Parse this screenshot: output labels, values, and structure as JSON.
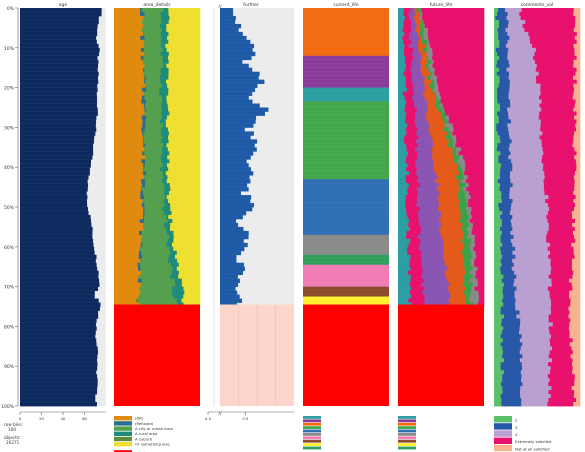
{
  "chart_data": {
    "type": "table",
    "panels": [
      {
        "name": "age",
        "kind": "numeric",
        "axis_ticks": [
          "0",
          "20",
          "40",
          "60"
        ],
        "profile": [
          [
            0.0,
            0.97
          ],
          [
            0.02,
            0.93
          ],
          [
            0.05,
            0.9
          ],
          [
            0.08,
            0.89
          ],
          [
            0.1,
            0.92
          ],
          [
            0.14,
            0.9
          ],
          [
            0.18,
            0.91
          ],
          [
            0.22,
            0.89
          ],
          [
            0.26,
            0.91
          ],
          [
            0.3,
            0.88
          ],
          [
            0.34,
            0.86
          ],
          [
            0.38,
            0.83
          ],
          [
            0.42,
            0.8
          ],
          [
            0.46,
            0.78
          ],
          [
            0.5,
            0.79
          ],
          [
            0.54,
            0.83
          ],
          [
            0.58,
            0.85
          ],
          [
            0.62,
            0.88
          ],
          [
            0.66,
            0.91
          ],
          [
            0.7,
            0.93
          ],
          [
            0.72,
            0.85
          ],
          [
            0.74,
            0.95
          ],
          [
            0.76,
            0.92
          ],
          [
            0.78,
            0.9
          ],
          [
            0.82,
            0.88
          ],
          [
            0.86,
            0.91
          ],
          [
            0.9,
            0.89
          ],
          [
            0.94,
            0.9
          ],
          [
            0.98,
            0.88
          ],
          [
            1.0,
            0.9
          ]
        ]
      },
      {
        "name": "area_details",
        "kind": "categorical",
        "missing_from": 0.745,
        "bands": [
          {
            "color": "#e18a10",
            "cum": [
              [
                0.0,
                0.32
              ],
              [
                0.2,
                0.34
              ],
              [
                0.4,
                0.34
              ],
              [
                0.55,
                0.32
              ],
              [
                0.6,
                0.3
              ],
              [
                0.7,
                0.29
              ],
              [
                0.745,
                0.28
              ]
            ]
          },
          {
            "color": "#2b6e8f",
            "cum": [
              [
                0.0,
                0.33
              ],
              [
                0.2,
                0.35
              ],
              [
                0.4,
                0.35
              ],
              [
                0.55,
                0.33
              ],
              [
                0.6,
                0.31
              ],
              [
                0.7,
                0.3
              ],
              [
                0.745,
                0.29
              ]
            ]
          },
          {
            "color": "#55a04f",
            "cum": [
              [
                0.0,
                0.55
              ],
              [
                0.2,
                0.55
              ],
              [
                0.4,
                0.55
              ],
              [
                0.5,
                0.58
              ],
              [
                0.58,
                0.62
              ],
              [
                0.65,
                0.66
              ],
              [
                0.72,
                0.7
              ],
              [
                0.745,
                0.72
              ]
            ]
          },
          {
            "color": "#1e8c78",
            "cum": [
              [
                0.0,
                0.62
              ],
              [
                0.2,
                0.62
              ],
              [
                0.4,
                0.62
              ],
              [
                0.5,
                0.64
              ],
              [
                0.58,
                0.68
              ],
              [
                0.65,
                0.74
              ],
              [
                0.72,
                0.8
              ],
              [
                0.745,
                0.8
              ]
            ]
          },
          {
            "color": "#eedf30",
            "cum": [
              [
                0.0,
                1.0
              ],
              [
                0.745,
                1.0
              ]
            ]
          }
        ],
        "legend": [
          {
            "label": "(DK)",
            "color": "#e18a10"
          },
          {
            "label": "(Refused)",
            "color": "#2b6e8f"
          },
          {
            "label": "A city or urban area",
            "color": "#55a04f"
          },
          {
            "label": "A rural area",
            "color": "#1e8c78"
          },
          {
            "label": "A suburb",
            "color": "#5f8c3a"
          },
          {
            "label": "Or something else",
            "color": "#eedf30"
          },
          {
            "label": "missing",
            "color": "#ff0000"
          }
        ]
      },
      {
        "name": "further",
        "kind": "numeric",
        "missing_from": 0.745,
        "axis_ticks": [
          "0.0",
          "0.5"
        ],
        "profile": [
          [
            0.0,
            0.35
          ],
          [
            0.05,
            0.33
          ],
          [
            0.1,
            0.55
          ],
          [
            0.14,
            0.42
          ],
          [
            0.18,
            0.62
          ],
          [
            0.22,
            0.5
          ],
          [
            0.26,
            0.68
          ],
          [
            0.3,
            0.47
          ],
          [
            0.34,
            0.6
          ],
          [
            0.38,
            0.44
          ],
          [
            0.42,
            0.55
          ],
          [
            0.46,
            0.4
          ],
          [
            0.5,
            0.52
          ],
          [
            0.54,
            0.35
          ],
          [
            0.58,
            0.47
          ],
          [
            0.62,
            0.32
          ],
          [
            0.66,
            0.42
          ],
          [
            0.7,
            0.3
          ],
          [
            0.745,
            0.36
          ]
        ]
      },
      {
        "name": "current_life",
        "kind": "categorical",
        "missing_from": 0.745,
        "segments": [
          {
            "color": "#f26b10",
            "from": 0.0,
            "to": 0.12
          },
          {
            "color": "#8b3b9c",
            "from": 0.12,
            "to": 0.2
          },
          {
            "color": "#2c9fa3",
            "from": 0.2,
            "to": 0.235
          },
          {
            "color": "#44a84a",
            "from": 0.235,
            "to": 0.43
          },
          {
            "color": "#2f6fb4",
            "from": 0.43,
            "to": 0.57
          },
          {
            "color": "#8a8a8a",
            "from": 0.57,
            "to": 0.62
          },
          {
            "color": "#2fa05c",
            "from": 0.62,
            "to": 0.645
          },
          {
            "color": "#f07bb5",
            "from": 0.645,
            "to": 0.7
          },
          {
            "color": "#8b4a2b",
            "from": 0.7,
            "to": 0.725
          },
          {
            "color": "#fff030",
            "from": 0.725,
            "to": 0.745
          }
        ],
        "legend_colors": [
          "#2c9fa3",
          "#8b3b9c",
          "#f26b10",
          "#44a84a",
          "#2f6fb4",
          "#8a8a8a",
          "#f07bb5",
          "#8b4a2b",
          "#fff030",
          "#2fa05c",
          "#ff0000"
        ]
      },
      {
        "name": "future_life",
        "kind": "categorical",
        "missing_from": 0.745,
        "bands": [
          {
            "color": "#2c9fa3",
            "cum": [
              [
                0.0,
                0.06
              ],
              [
                0.2,
                0.08
              ],
              [
                0.4,
                0.1
              ],
              [
                0.6,
                0.12
              ],
              [
                0.745,
                0.14
              ]
            ]
          },
          {
            "color": "#e8116e",
            "cum": [
              [
                0.0,
                0.12
              ],
              [
                0.1,
                0.15
              ],
              [
                0.2,
                0.18
              ],
              [
                0.35,
                0.22
              ],
              [
                0.5,
                0.24
              ],
              [
                0.6,
                0.25
              ],
              [
                0.745,
                0.3
              ]
            ]
          },
          {
            "color": "#8a55b3",
            "cum": [
              [
                0.0,
                0.2
              ],
              [
                0.1,
                0.24
              ],
              [
                0.2,
                0.3
              ],
              [
                0.35,
                0.4
              ],
              [
                0.45,
                0.46
              ],
              [
                0.55,
                0.5
              ],
              [
                0.65,
                0.56
              ],
              [
                0.745,
                0.6
              ]
            ]
          },
          {
            "color": "#e45a1a",
            "cum": [
              [
                0.0,
                0.22
              ],
              [
                0.1,
                0.3
              ],
              [
                0.2,
                0.38
              ],
              [
                0.3,
                0.54
              ],
              [
                0.4,
                0.68
              ],
              [
                0.5,
                0.72
              ],
              [
                0.6,
                0.76
              ],
              [
                0.745,
                0.78
              ]
            ]
          },
          {
            "color": "#3aa34a",
            "cum": [
              [
                0.0,
                0.24
              ],
              [
                0.1,
                0.34
              ],
              [
                0.2,
                0.42
              ],
              [
                0.3,
                0.58
              ],
              [
                0.4,
                0.74
              ],
              [
                0.5,
                0.8
              ],
              [
                0.6,
                0.84
              ],
              [
                0.745,
                0.86
              ]
            ]
          },
          {
            "color": "#8a8a8a",
            "cum": [
              [
                0.0,
                0.26
              ],
              [
                0.1,
                0.38
              ],
              [
                0.2,
                0.46
              ],
              [
                0.3,
                0.62
              ],
              [
                0.4,
                0.78
              ],
              [
                0.5,
                0.84
              ],
              [
                0.6,
                0.89
              ],
              [
                0.745,
                0.92
              ]
            ]
          },
          {
            "color": "#e8116e",
            "cum": [
              [
                0.0,
                1.0
              ],
              [
                0.745,
                1.0
              ]
            ]
          }
        ],
        "legend_colors": [
          "#2c9fa3",
          "#8b3b9c",
          "#f26b10",
          "#44a84a",
          "#2f6fb4",
          "#8a8a8a",
          "#f07bb5",
          "#8b4a2b",
          "#fff030",
          "#2fa05c",
          "#ff0000"
        ]
      },
      {
        "name": "comments_val",
        "kind": "categorical",
        "missing_from": 1.0,
        "bands": [
          {
            "color": "#5bbf6b",
            "cum": [
              [
                0.0,
                0.04
              ],
              [
                0.3,
                0.05
              ],
              [
                0.6,
                0.08
              ],
              [
                0.75,
                0.1
              ],
              [
                1.0,
                0.09
              ]
            ]
          },
          {
            "color": "#2958a8",
            "cum": [
              [
                0.0,
                0.14
              ],
              [
                0.1,
                0.16
              ],
              [
                0.3,
                0.18
              ],
              [
                0.5,
                0.2
              ],
              [
                0.7,
                0.24
              ],
              [
                0.8,
                0.3
              ],
              [
                1.0,
                0.32
              ]
            ]
          },
          {
            "color": "#b9a0d0",
            "cum": [
              [
                0.0,
                0.3
              ],
              [
                0.05,
                0.36
              ],
              [
                0.1,
                0.46
              ],
              [
                0.2,
                0.52
              ],
              [
                0.35,
                0.56
              ],
              [
                0.5,
                0.62
              ],
              [
                0.65,
                0.64
              ],
              [
                0.8,
                0.66
              ],
              [
                1.0,
                0.64
              ]
            ]
          },
          {
            "color": "#e8116e",
            "cum": [
              [
                0.0,
                0.94
              ],
              [
                0.3,
                0.94
              ],
              [
                0.6,
                0.92
              ],
              [
                0.75,
                0.88
              ],
              [
                0.85,
                0.9
              ],
              [
                1.0,
                0.94
              ]
            ]
          },
          {
            "color": "#f7b38d",
            "cum": [
              [
                0.0,
                1.0
              ],
              [
                1.0,
                1.0
              ]
            ]
          }
        ],
        "legend": [
          {
            "label": "2",
            "color": "#5bbf6b"
          },
          {
            "label": "3",
            "color": "#2958a8"
          },
          {
            "label": "4",
            "color": "#b9a0d0"
          },
          {
            "label": "Extremely satisfied",
            "color": "#e8116e"
          },
          {
            "label": "Not at all satisfied",
            "color": "#f7b38d"
          },
          {
            "label": "missing",
            "color": "#ff0000"
          }
        ]
      }
    ],
    "y_axis_ticks": [
      "0%",
      "10%",
      "20%",
      "30%",
      "40%",
      "50%",
      "60%",
      "70%",
      "80%",
      "90%",
      "100%"
    ],
    "missing_color": "#ff0000",
    "info": {
      "row_bins_label": "row bins:",
      "row_bins_value": "100",
      "objects_label": "objects:",
      "objects_value": "20271"
    }
  }
}
